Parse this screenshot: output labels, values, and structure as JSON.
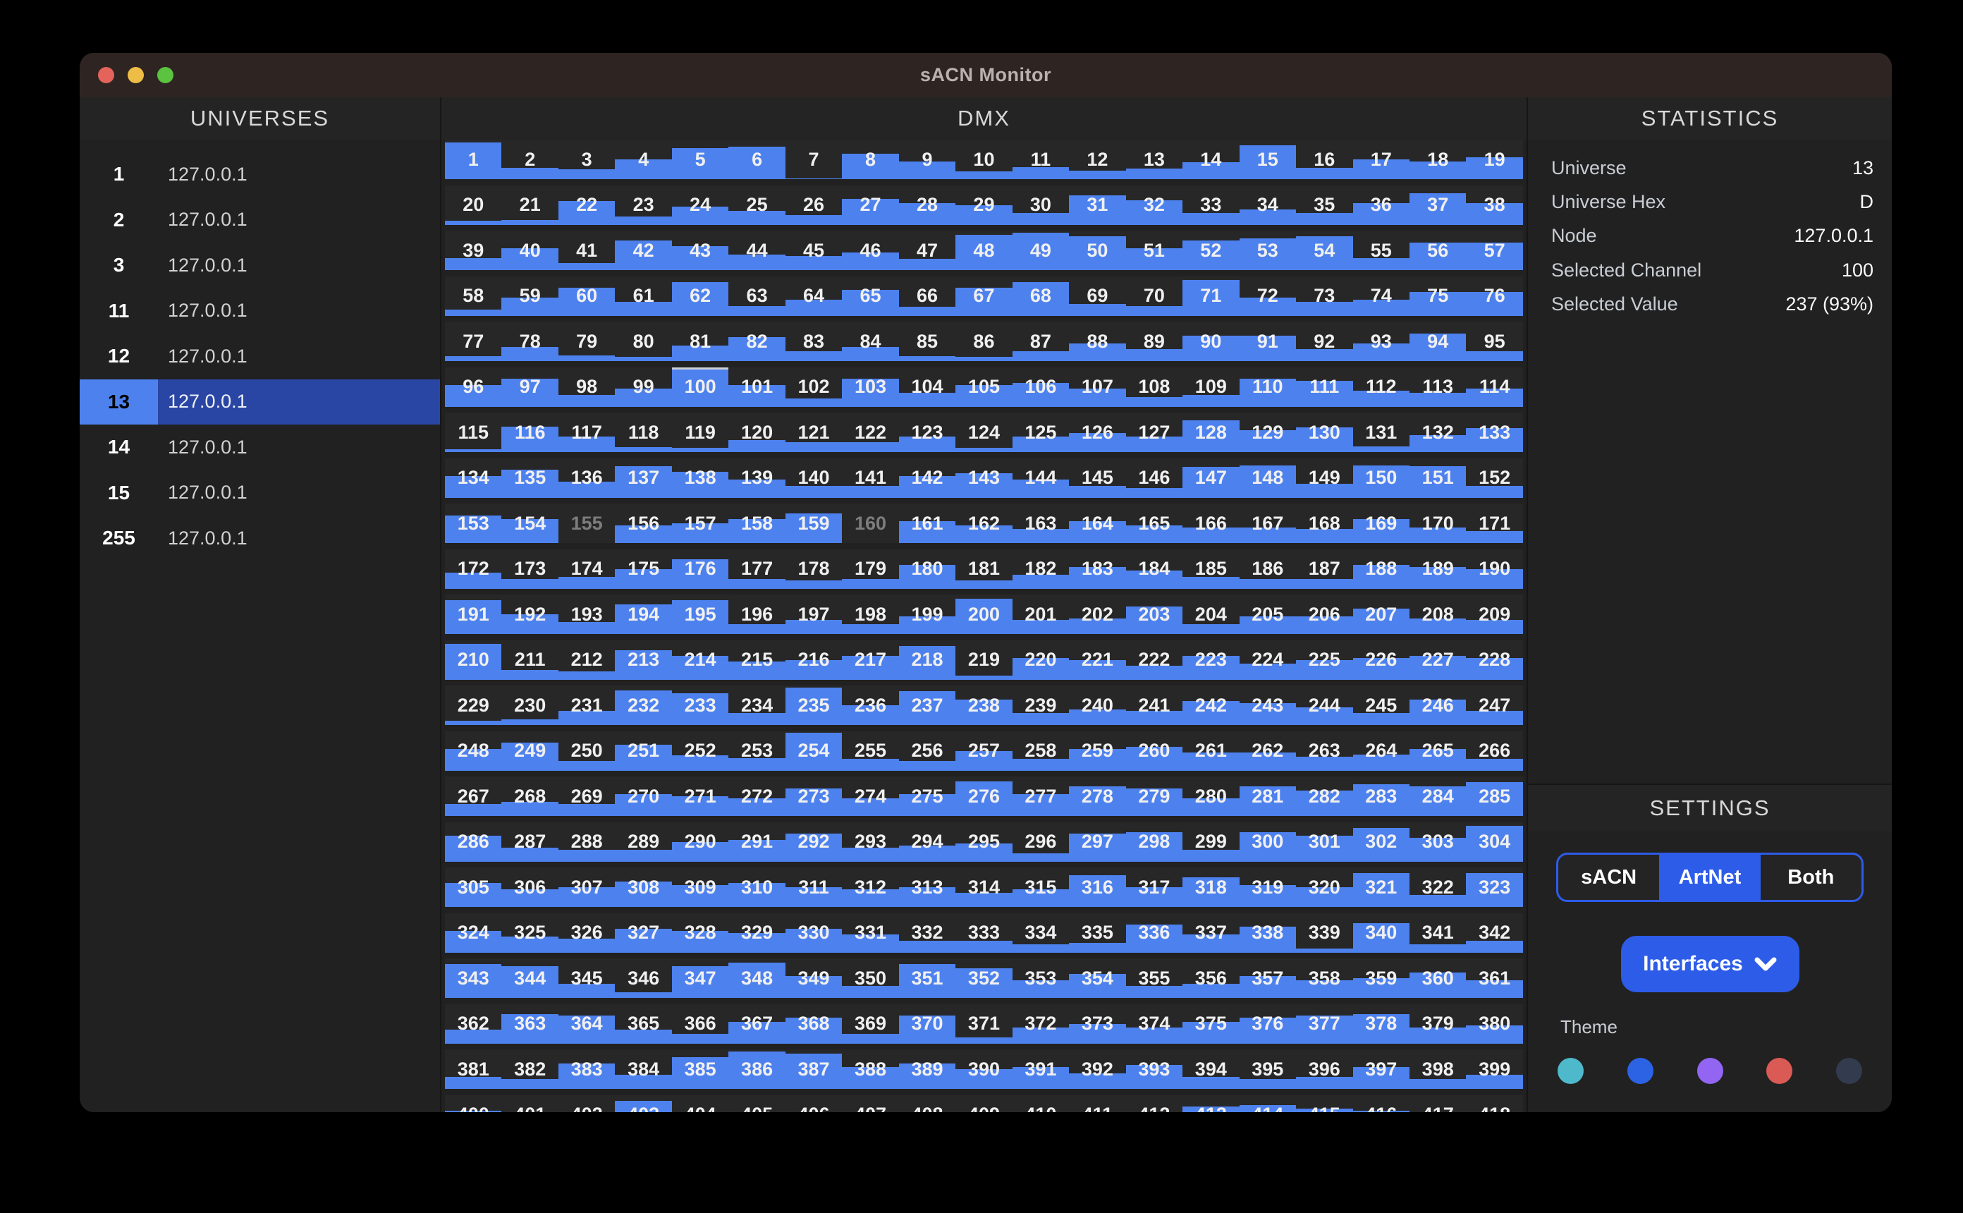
{
  "window_title": "sACN Monitor",
  "traffic_lights": [
    {
      "name": "close",
      "color": "#e4645c"
    },
    {
      "name": "minimize",
      "color": "#eebd45"
    },
    {
      "name": "zoom",
      "color": "#5bc33f"
    }
  ],
  "universes": {
    "header": "UNIVERSES",
    "selected_id": "13",
    "items": [
      {
        "id": "1",
        "address": "127.0.0.1"
      },
      {
        "id": "2",
        "address": "127.0.0.1"
      },
      {
        "id": "3",
        "address": "127.0.0.1"
      },
      {
        "id": "11",
        "address": "127.0.0.1"
      },
      {
        "id": "12",
        "address": "127.0.0.1"
      },
      {
        "id": "13",
        "address": "127.0.0.1"
      },
      {
        "id": "14",
        "address": "127.0.0.1"
      },
      {
        "id": "15",
        "address": "127.0.0.1"
      },
      {
        "id": "255",
        "address": "127.0.0.1"
      }
    ]
  },
  "dmx": {
    "header": "DMX",
    "columns": 19,
    "start_channel": 1,
    "selected_channel": 100,
    "values_percent": [
      92,
      28,
      25,
      50,
      78,
      82,
      2,
      65,
      45,
      20,
      30,
      22,
      26,
      42,
      85,
      28,
      50,
      45,
      55,
      10,
      12,
      60,
      20,
      45,
      35,
      25,
      65,
      55,
      50,
      30,
      75,
      62,
      30,
      38,
      30,
      55,
      80,
      55,
      30,
      55,
      18,
      75,
      60,
      40,
      35,
      45,
      28,
      90,
      95,
      85,
      55,
      75,
      80,
      85,
      30,
      70,
      70,
      15,
      45,
      70,
      35,
      85,
      25,
      40,
      65,
      22,
      70,
      85,
      30,
      25,
      90,
      45,
      35,
      40,
      60,
      60,
      12,
      35,
      15,
      10,
      40,
      60,
      25,
      35,
      12,
      10,
      25,
      45,
      30,
      65,
      65,
      30,
      45,
      70,
      25,
      55,
      70,
      30,
      45,
      93,
      55,
      20,
      70,
      35,
      55,
      60,
      45,
      25,
      30,
      70,
      65,
      40,
      35,
      45,
      8,
      65,
      40,
      12,
      10,
      30,
      25,
      25,
      40,
      10,
      40,
      48,
      40,
      80,
      55,
      62,
      15,
      42,
      60,
      55,
      70,
      40,
      80,
      65,
      45,
      30,
      30,
      55,
      62,
      45,
      30,
      25,
      78,
      82,
      35,
      82,
      80,
      30,
      70,
      60,
      0,
      45,
      50,
      60,
      75,
      0,
      55,
      45,
      35,
      55,
      45,
      40,
      40,
      35,
      60,
      40,
      30,
      40,
      25,
      30,
      50,
      75,
      25,
      20,
      25,
      60,
      20,
      35,
      55,
      45,
      30,
      25,
      25,
      60,
      55,
      50,
      85,
      50,
      30,
      75,
      85,
      25,
      35,
      25,
      45,
      90,
      35,
      40,
      70,
      25,
      45,
      45,
      65,
      40,
      35,
      90,
      25,
      20,
      75,
      60,
      45,
      50,
      60,
      85,
      10,
      55,
      50,
      35,
      60,
      40,
      50,
      55,
      60,
      55,
      10,
      15,
      35,
      88,
      80,
      30,
      95,
      50,
      85,
      65,
      30,
      40,
      35,
      60,
      55,
      45,
      30,
      65,
      35,
      55,
      70,
      25,
      65,
      38,
      32,
      95,
      30,
      25,
      50,
      30,
      55,
      60,
      45,
      45,
      35,
      40,
      55,
      30,
      30,
      35,
      30,
      55,
      50,
      45,
      70,
      45,
      55,
      88,
      55,
      75,
      70,
      45,
      75,
      65,
      80,
      75,
      85,
      65,
      35,
      30,
      30,
      50,
      55,
      70,
      35,
      40,
      45,
      20,
      70,
      75,
      30,
      75,
      65,
      85,
      60,
      90,
      60,
      45,
      50,
      65,
      55,
      60,
      50,
      45,
      50,
      35,
      45,
      80,
      50,
      75,
      55,
      50,
      85,
      30,
      85,
      55,
      40,
      35,
      60,
      55,
      50,
      60,
      45,
      30,
      30,
      20,
      25,
      70,
      45,
      65,
      10,
      75,
      20,
      30,
      85,
      80,
      35,
      15,
      80,
      90,
      55,
      30,
      85,
      75,
      45,
      60,
      30,
      35,
      55,
      45,
      50,
      65,
      45,
      35,
      75,
      70,
      35,
      25,
      55,
      65,
      25,
      70,
      15,
      40,
      50,
      40,
      55,
      65,
      70,
      75,
      40,
      45,
      30,
      25,
      65,
      35,
      80,
      95,
      90,
      55,
      65,
      50,
      55,
      40,
      60,
      30,
      25,
      30,
      55,
      25,
      35,
      60,
      30,
      25,
      85,
      40,
      35,
      30,
      25,
      35,
      30,
      40,
      45,
      35,
      70,
      75,
      65,
      60,
      45,
      55
    ]
  },
  "statistics": {
    "header": "STATISTICS",
    "rows": [
      {
        "label": "Universe",
        "value": "13"
      },
      {
        "label": "Universe Hex",
        "value": "D"
      },
      {
        "label": "Node",
        "value": "127.0.0.1"
      },
      {
        "label": "Selected Channel",
        "value": "100"
      },
      {
        "label": "Selected Value",
        "value": "237 (93%)"
      }
    ]
  },
  "settings": {
    "header": "SETTINGS",
    "segments": [
      {
        "label": "sACN",
        "active": false
      },
      {
        "label": "ArtNet",
        "active": true
      },
      {
        "label": "Both",
        "active": false
      }
    ],
    "interfaces_label": "Interfaces",
    "theme_label": "Theme",
    "theme_colors": [
      "#4fb9cc",
      "#2c63e4",
      "#9265f2",
      "#da5a55",
      "#333b4f"
    ]
  },
  "colors": {
    "accent_fill": "#4d81ee",
    "selected_universe_number_bg": "#4d82ee",
    "selected_universe_row_bg": "#2a46a5",
    "segment_active_bg": "#2d5ce8",
    "interfaces_button_bg": "#2d5ce8",
    "zero_channel_text": "#7d7d7d",
    "titlebar_bg": "#2e2523",
    "panel_bg": "#212121"
  }
}
